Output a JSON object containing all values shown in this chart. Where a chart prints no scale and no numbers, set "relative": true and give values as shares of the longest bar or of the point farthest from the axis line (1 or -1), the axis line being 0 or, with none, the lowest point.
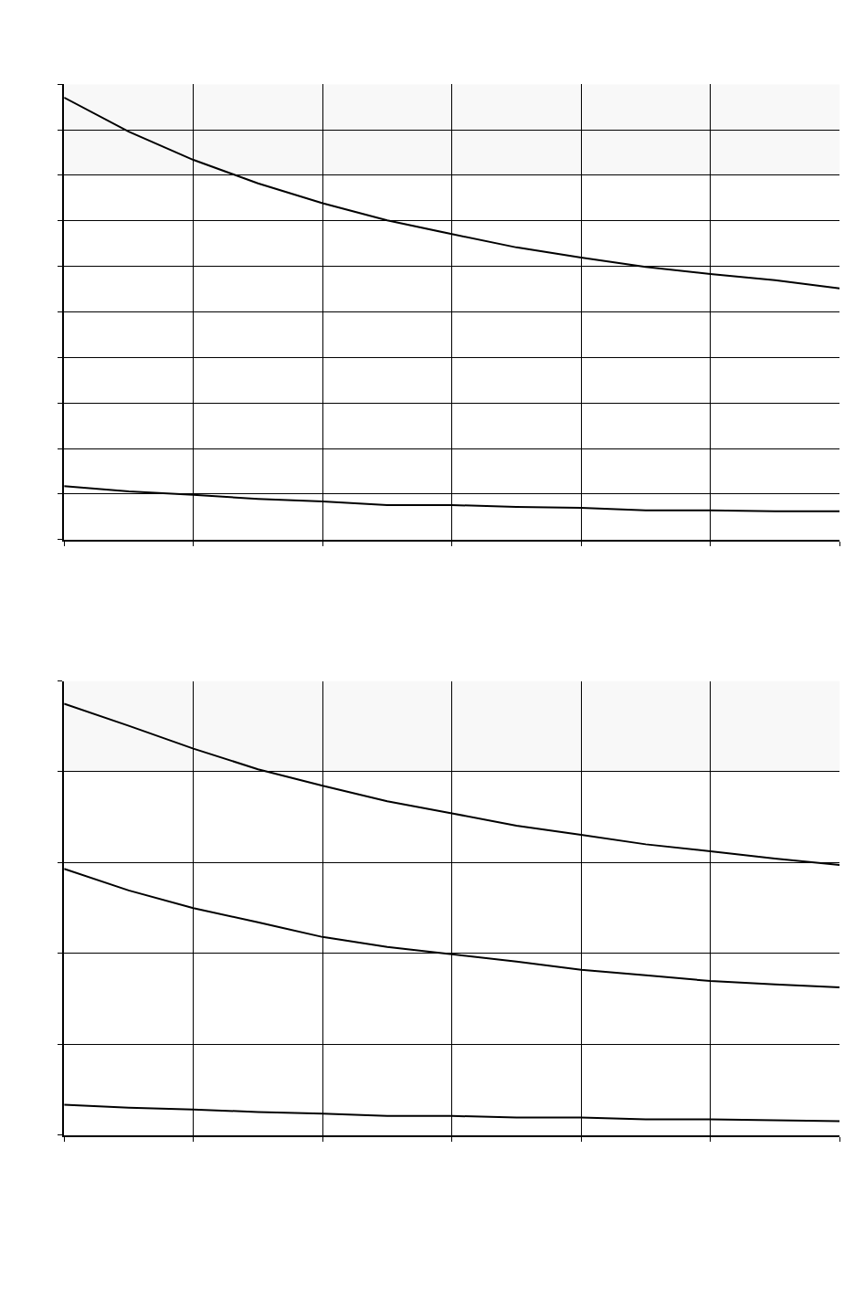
{
  "chart_data": [
    {
      "type": "line",
      "relative": true,
      "grid": true,
      "categories": [
        null,
        null,
        null,
        null,
        null,
        null,
        null,
        null,
        null,
        null,
        null,
        null,
        null
      ],
      "series": [
        {
          "color": "#000000",
          "values": [
            1.0,
            0.923,
            0.859,
            0.806,
            0.761,
            0.722,
            0.691,
            0.661,
            0.638,
            0.617,
            0.601,
            0.587,
            0.568
          ]
        },
        {
          "color": "#000000",
          "values": [
            0.121,
            0.109,
            0.101,
            0.092,
            0.086,
            0.078,
            0.078,
            0.074,
            0.072,
            0.066,
            0.066,
            0.064,
            0.064
          ]
        }
      ],
      "bands": [
        {
          "axis": "y",
          "from": 0.825,
          "to": 1.03,
          "color": "#f8f8f8"
        }
      ]
    },
    {
      "type": "line",
      "relative": true,
      "grid": true,
      "categories": [
        null,
        null,
        null,
        null,
        null,
        null,
        null,
        null,
        null,
        null,
        null,
        null,
        null
      ],
      "series": [
        {
          "color": "#000000",
          "values": [
            1.0,
            0.949,
            0.896,
            0.848,
            0.81,
            0.774,
            0.746,
            0.717,
            0.696,
            0.674,
            0.658,
            0.641,
            0.626
          ]
        },
        {
          "color": "#000000",
          "values": [
            0.617,
            0.567,
            0.526,
            0.493,
            0.459,
            0.436,
            0.419,
            0.402,
            0.383,
            0.37,
            0.357,
            0.349,
            0.342
          ]
        },
        {
          "color": "#000000",
          "values": [
            0.07,
            0.063,
            0.059,
            0.053,
            0.049,
            0.044,
            0.044,
            0.04,
            0.04,
            0.036,
            0.036,
            0.034,
            0.032
          ]
        }
      ],
      "bands": [
        {
          "axis": "y",
          "from": 0.841,
          "to": 1.053,
          "color": "#f8f8f8"
        }
      ]
    }
  ]
}
